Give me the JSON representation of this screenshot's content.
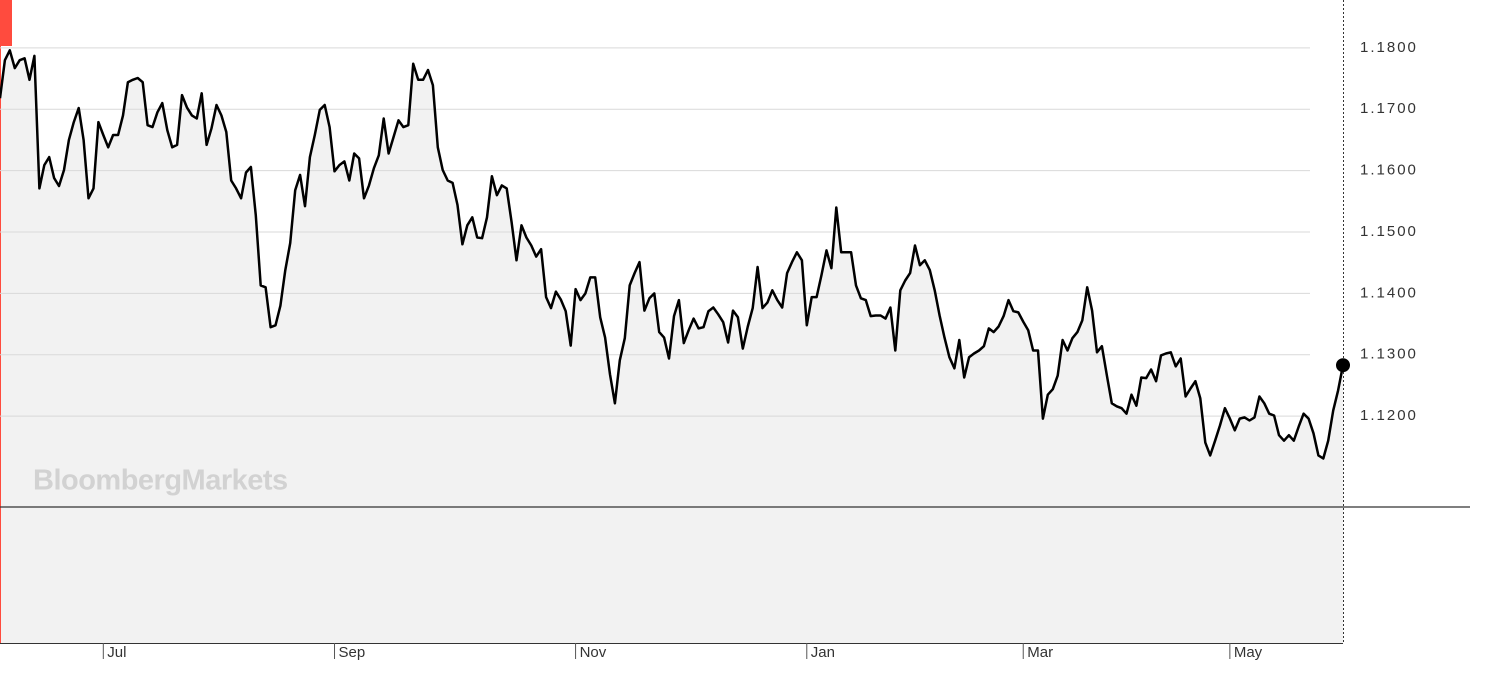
{
  "chart_data": {
    "type": "line",
    "watermark": "BloombergMarkets",
    "color": "#000000",
    "area_color": "#f2f2f2",
    "grid": true,
    "ylim": [
      1.1052,
      1.1878
    ],
    "yticks": [
      {
        "value": 1.18,
        "label": "1.1800"
      },
      {
        "value": 1.17,
        "label": "1.1700"
      },
      {
        "value": 1.16,
        "label": "1.1600"
      },
      {
        "value": 1.15,
        "label": "1.1500"
      },
      {
        "value": 1.14,
        "label": "1.1400"
      },
      {
        "value": 1.13,
        "label": "1.1300"
      },
      {
        "value": 1.12,
        "label": "1.1200"
      }
    ],
    "xlim": [
      0,
      273
    ],
    "xticks": [
      {
        "value": 21,
        "label": "Jul"
      },
      {
        "value": 68,
        "label": "Sep"
      },
      {
        "value": 117,
        "label": "Nov"
      },
      {
        "value": 164,
        "label": "Jan"
      },
      {
        "value": 208,
        "label": "Mar"
      },
      {
        "value": 250,
        "label": "May"
      }
    ],
    "values": [
      1.1718,
      1.178,
      1.1796,
      1.1767,
      1.178,
      1.1783,
      1.1748,
      1.1787,
      1.1571,
      1.1609,
      1.1622,
      1.1588,
      1.1575,
      1.1601,
      1.165,
      1.1679,
      1.1702,
      1.165,
      1.1555,
      1.1571,
      1.1679,
      1.1658,
      1.1638,
      1.1658,
      1.1658,
      1.169,
      1.1744,
      1.1748,
      1.1751,
      1.1744,
      1.1674,
      1.1671,
      1.1695,
      1.171,
      1.1666,
      1.1638,
      1.1642,
      1.1723,
      1.1703,
      1.169,
      1.1685,
      1.1726,
      1.1642,
      1.1669,
      1.1707,
      1.169,
      1.1663,
      1.1584,
      1.1571,
      1.1555,
      1.1597,
      1.1606,
      1.1527,
      1.1413,
      1.141,
      1.1345,
      1.1348,
      1.138,
      1.1438,
      1.1482,
      1.1568,
      1.1593,
      1.1542,
      1.1622,
      1.1658,
      1.1699,
      1.1707,
      1.1671,
      1.1599,
      1.1609,
      1.1615,
      1.1584,
      1.1628,
      1.162,
      1.1555,
      1.1576,
      1.1604,
      1.1625,
      1.1685,
      1.1628,
      1.1655,
      1.1682,
      1.1671,
      1.1674,
      1.1774,
      1.1748,
      1.1748,
      1.1764,
      1.1739,
      1.1638,
      1.1601,
      1.1584,
      1.158,
      1.1544,
      1.148,
      1.1511,
      1.1524,
      1.1491,
      1.149,
      1.1524,
      1.1591,
      1.156,
      1.1576,
      1.1571,
      1.1516,
      1.1454,
      1.1511,
      1.1491,
      1.1478,
      1.146,
      1.1472,
      1.1394,
      1.1376,
      1.1403,
      1.139,
      1.1371,
      1.1315,
      1.1407,
      1.1389,
      1.14,
      1.1426,
      1.1426,
      1.1361,
      1.1328,
      1.1268,
      1.1221,
      1.1291,
      1.1327,
      1.1413,
      1.1433,
      1.1451,
      1.1372,
      1.1392,
      1.14,
      1.1337,
      1.1328,
      1.1294,
      1.1363,
      1.1389,
      1.1319,
      1.134,
      1.1359,
      1.1343,
      1.1345,
      1.1371,
      1.1377,
      1.1366,
      1.1353,
      1.132,
      1.1372,
      1.1361,
      1.131,
      1.1346,
      1.1376,
      1.1443,
      1.1376,
      1.1385,
      1.1405,
      1.1389,
      1.1377,
      1.1433,
      1.1451,
      1.1467,
      1.1454,
      1.1348,
      1.1394,
      1.1394,
      1.143,
      1.147,
      1.1441,
      1.154,
      1.1467,
      1.1467,
      1.1467,
      1.1413,
      1.1392,
      1.1389,
      1.1363,
      1.1364,
      1.1364,
      1.1359,
      1.1377,
      1.1307,
      1.1405,
      1.1421,
      1.1433,
      1.1478,
      1.1446,
      1.1454,
      1.1438,
      1.1405,
      1.1364,
      1.1328,
      1.1296,
      1.1278,
      1.1324,
      1.1263,
      1.1296,
      1.1302,
      1.1307,
      1.1314,
      1.1343,
      1.1337,
      1.1346,
      1.1363,
      1.1389,
      1.1371,
      1.1369,
      1.1354,
      1.134,
      1.1307,
      1.1307,
      1.1196,
      1.1235,
      1.1244,
      1.1266,
      1.1324,
      1.1307,
      1.1327,
      1.1337,
      1.1356,
      1.141,
      1.1372,
      1.1304,
      1.1314,
      1.1266,
      1.1221,
      1.1216,
      1.1213,
      1.1204,
      1.1235,
      1.1217,
      1.1263,
      1.1262,
      1.1276,
      1.1257,
      1.1299,
      1.1302,
      1.1304,
      1.1281,
      1.1294,
      1.1232,
      1.1245,
      1.1257,
      1.1229,
      1.1157,
      1.1136,
      1.116,
      1.1185,
      1.1213,
      1.1196,
      1.1177,
      1.1196,
      1.1198,
      1.1193,
      1.1198,
      1.1232,
      1.1221,
      1.1204,
      1.1201,
      1.1169,
      1.116,
      1.1169,
      1.116,
      1.1183,
      1.1204,
      1.1196,
      1.1172,
      1.1136,
      1.1131,
      1.116,
      1.1209,
      1.1242,
      1.1283
    ]
  }
}
